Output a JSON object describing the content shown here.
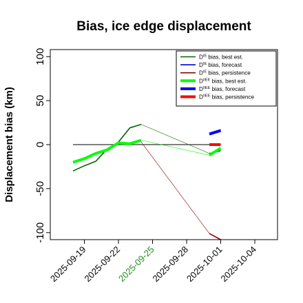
{
  "chart_data": {
    "type": "line",
    "title": "Bias, ice edge displacement",
    "xlabel": "",
    "ylabel": "Displacement bias (km)",
    "xlim": [
      "2025-09-16",
      "2025-10-06"
    ],
    "ylim": [
      -108,
      108
    ],
    "x_ticks": [
      "2025-09-19",
      "2025-09-22",
      "2025-09-25",
      "2025-09-28",
      "2025-10-01",
      "2025-10-04"
    ],
    "x_tick_highlight": "2025-09-25",
    "y_ticks": [
      -100,
      -50,
      0,
      50,
      100
    ],
    "y_tick_labels": [
      "-100",
      "-50",
      "0",
      "50",
      "100"
    ],
    "grid": false,
    "legend_position": "top-right",
    "reference_line": {
      "y": 0,
      "x": [
        "2025-09-18",
        "2025-10-01"
      ]
    },
    "series": [
      {
        "name": "D^IE bias, best est.",
        "color": "#006400",
        "width": "thin",
        "segments": [
          [
            [
              "2025-09-18",
              -30
            ],
            [
              "2025-09-19",
              -24
            ],
            [
              "2025-09-20",
              -19
            ],
            [
              "2025-09-21",
              -5
            ],
            [
              "2025-09-22",
              3
            ],
            [
              "2025-09-23",
              19
            ],
            [
              "2025-09-24",
              23
            ]
          ],
          [
            [
              "2025-09-30",
              -10
            ],
            [
              "2025-10-01",
              -7
            ]
          ]
        ],
        "connectors": [
          [
            [
              "2025-09-24",
              23
            ],
            [
              "2025-09-30",
              -10
            ]
          ]
        ]
      },
      {
        "name": "D^IE bias, forecast",
        "color": "#0000cd",
        "width": "thin",
        "segments": [
          [
            [
              "2025-09-30",
              13
            ],
            [
              "2025-10-01",
              17
            ]
          ]
        ],
        "connectors": []
      },
      {
        "name": "D^IE bias, persistence",
        "color": "#8b0000",
        "width": "thin",
        "segments": [
          [
            [
              "2025-09-30",
              -101
            ],
            [
              "2025-10-01",
              -108
            ]
          ]
        ],
        "connectors": [
          [
            [
              "2025-09-24",
              3
            ],
            [
              "2025-09-30",
              -101
            ]
          ]
        ]
      },
      {
        "name": "D^IIEE bias, best est.",
        "color": "#00ff00",
        "width": "thick",
        "segments": [
          [
            [
              "2025-09-18",
              -20
            ],
            [
              "2025-09-19",
              -16
            ],
            [
              "2025-09-20",
              -10
            ],
            [
              "2025-09-21",
              -6
            ],
            [
              "2025-09-22",
              2
            ],
            [
              "2025-09-23",
              1
            ],
            [
              "2025-09-24",
              5
            ]
          ],
          [
            [
              "2025-09-30",
              -12
            ],
            [
              "2025-10-01",
              -4
            ]
          ]
        ],
        "connectors": [
          [
            [
              "2025-09-24",
              5
            ],
            [
              "2025-09-30",
              -12
            ]
          ]
        ]
      },
      {
        "name": "D^IIEE bias, forecast",
        "color": "#0000ff",
        "width": "thick",
        "segments": [
          [
            [
              "2025-09-30",
              12
            ],
            [
              "2025-10-01",
              16
            ]
          ]
        ],
        "connectors": []
      },
      {
        "name": "D^IIEE bias, persistence",
        "color": "#ff0000",
        "width": "thick",
        "segments": [
          [
            [
              "2025-09-30",
              0
            ],
            [
              "2025-10-01",
              0
            ]
          ]
        ],
        "connectors": []
      }
    ]
  },
  "colors": {
    "axis": "#000000",
    "tick_highlight": "#228b22",
    "reference_line": "#333333"
  }
}
